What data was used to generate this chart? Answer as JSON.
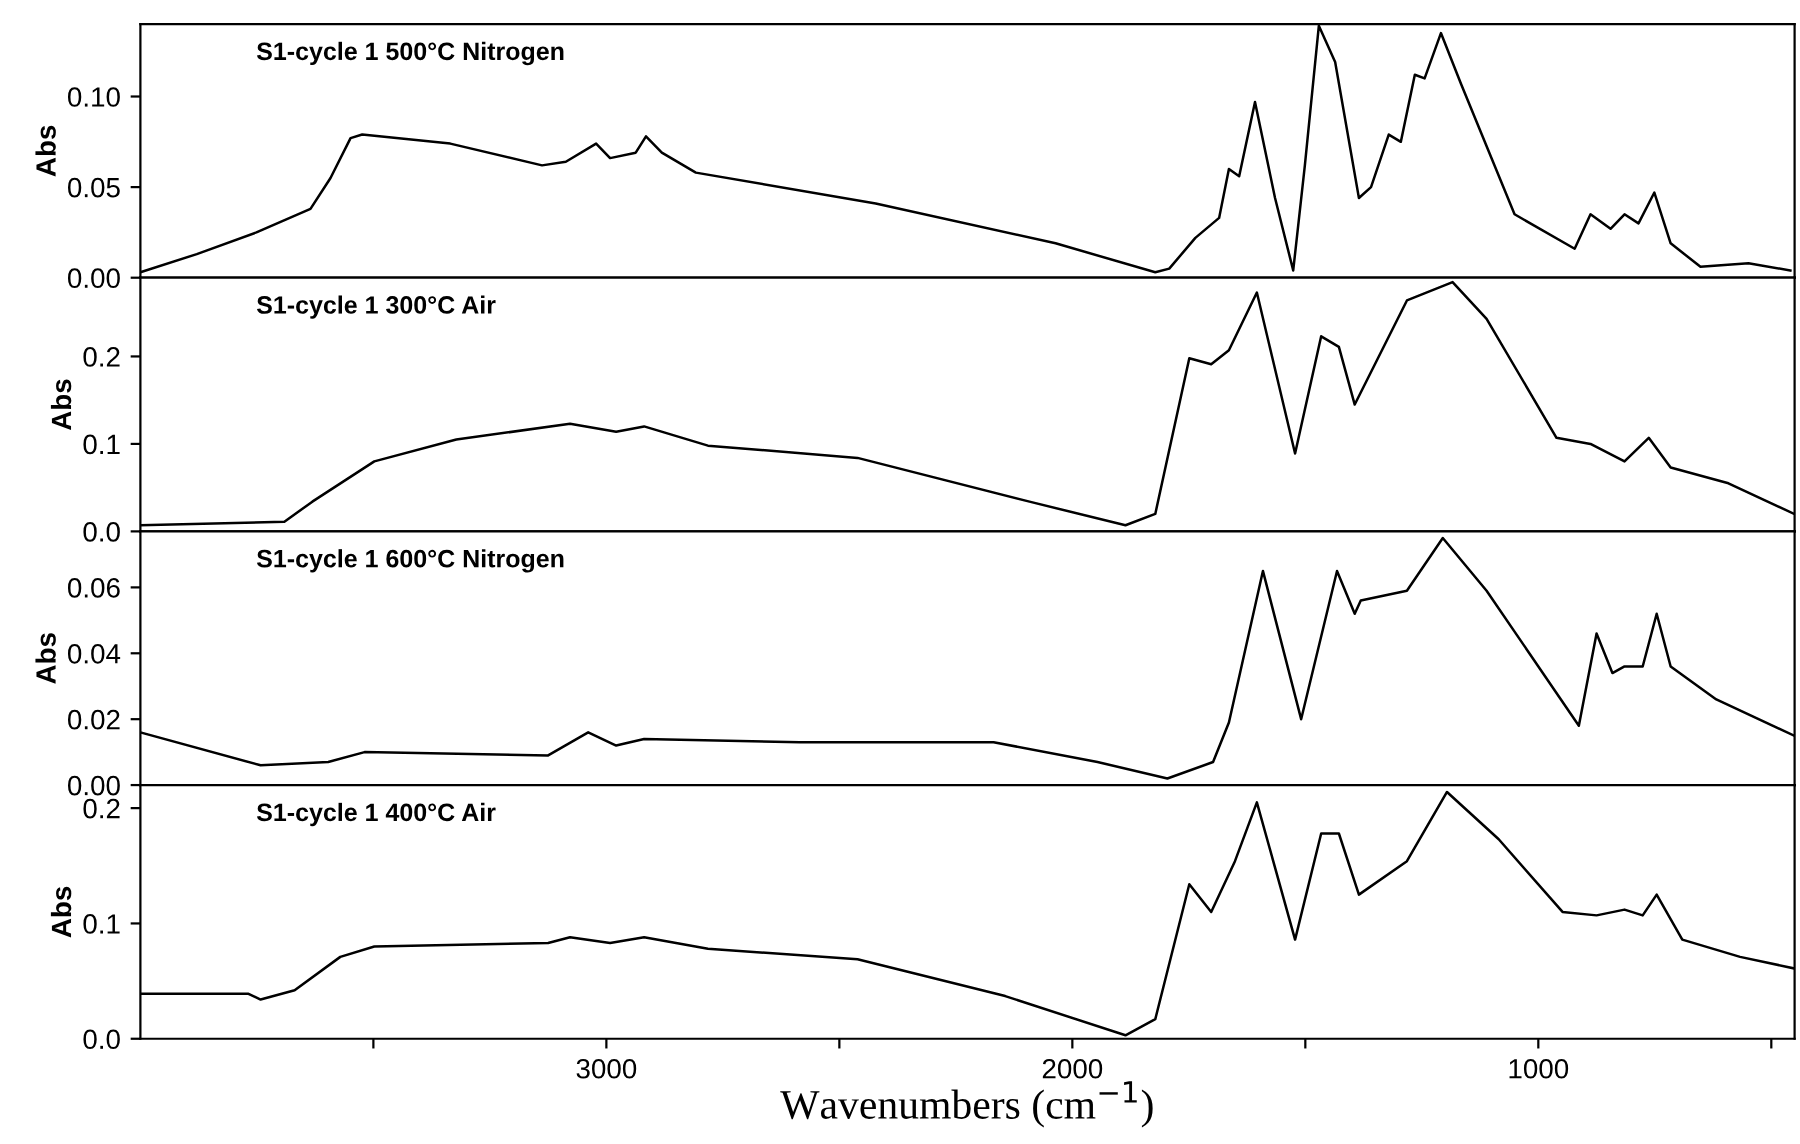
{
  "chart_data": [
    {
      "type": "line",
      "title": "S1-cycle 1 500°C Nitrogen",
      "ylabel": "Abs",
      "xlim": [
        4000,
        450
      ],
      "ylim": [
        0,
        0.14
      ],
      "yticks": [
        {
          "value": 0,
          "label": "0.00"
        },
        {
          "value": 0.05,
          "label": "0.05"
        },
        {
          "value": 0.1,
          "label": "0.10"
        }
      ],
      "xticks": [
        {
          "value": 3500,
          "label": null
        },
        {
          "value": 3000,
          "label": null
        },
        {
          "value": 2500,
          "label": null
        },
        {
          "value": 2000,
          "label": null
        },
        {
          "value": 1500,
          "label": null
        },
        {
          "value": 1000,
          "label": null
        },
        {
          "value": 500,
          "label": null
        }
      ],
      "tick_labels": "y",
      "grid": false,
      "legend": false,
      "series": [
        {
          "color": "#000000",
          "x": [
            4000,
            3879,
            3751,
            3635,
            3592,
            3549,
            3524,
            3335,
            3138,
            3087,
            3022,
            2992,
            2937,
            2915,
            2881,
            2808,
            2422,
            2036,
            1822,
            1792,
            1736,
            1685,
            1664,
            1642,
            1608,
            1565,
            1526,
            1501,
            1471,
            1436,
            1385,
            1359,
            1321,
            1295,
            1265,
            1244,
            1209,
            1166,
            1051,
            922,
            888,
            845,
            815,
            785,
            751,
            716,
            652,
            549,
            459
          ],
          "values": [
            0.003,
            0.013,
            0.025,
            0.038,
            0.055,
            0.077,
            0.079,
            0.074,
            0.062,
            0.064,
            0.074,
            0.066,
            0.069,
            0.078,
            0.069,
            0.058,
            0.041,
            0.019,
            0.003,
            0.005,
            0.022,
            0.033,
            0.06,
            0.056,
            0.097,
            0.044,
            0.004,
            0.062,
            0.139,
            0.119,
            0.044,
            0.05,
            0.079,
            0.075,
            0.112,
            0.11,
            0.135,
            0.107,
            0.035,
            0.016,
            0.035,
            0.027,
            0.035,
            0.03,
            0.047,
            0.019,
            0.006,
            0.008,
            0.004
          ]
        }
      ]
    },
    {
      "type": "line",
      "title": "S1-cycle 1 300°C Air",
      "ylabel": "Abs",
      "xlim": [
        4000,
        450
      ],
      "ylim": [
        0,
        0.29
      ],
      "yticks": [
        {
          "value": 0,
          "label": "0.0"
        },
        {
          "value": 0.1,
          "label": "0.1"
        },
        {
          "value": 0.2,
          "label": "0.2"
        }
      ],
      "xticks": [
        {
          "value": 3500,
          "label": null
        },
        {
          "value": 3000,
          "label": null
        },
        {
          "value": 2500,
          "label": null
        },
        {
          "value": 2000,
          "label": null
        },
        {
          "value": 1500,
          "label": null
        },
        {
          "value": 1000,
          "label": null
        },
        {
          "value": 500,
          "label": null
        }
      ],
      "tick_labels": "y",
      "grid": false,
      "legend": false,
      "series": [
        {
          "color": "#000000",
          "x": [
            4000,
            3691,
            3631,
            3498,
            3322,
            3078,
            2979,
            2919,
            2782,
            2461,
            2092,
            1886,
            1822,
            1749,
            1702,
            1664,
            1604,
            1522,
            1466,
            1428,
            1394,
            1282,
            1184,
            1111,
            961,
            888,
            815,
            763,
            716,
            592,
            451
          ],
          "values": [
            0.007,
            0.011,
            0.034,
            0.08,
            0.105,
            0.123,
            0.114,
            0.12,
            0.098,
            0.084,
            0.034,
            0.007,
            0.02,
            0.198,
            0.191,
            0.207,
            0.273,
            0.089,
            0.223,
            0.211,
            0.145,
            0.264,
            0.285,
            0.243,
            0.107,
            0.1,
            0.08,
            0.107,
            0.073,
            0.055,
            0.02
          ]
        }
      ]
    },
    {
      "type": "line",
      "title": "S1-cycle 1 600°C Nitrogen",
      "ylabel": "Abs",
      "xlim": [
        4000,
        450
      ],
      "ylim": [
        0,
        0.077
      ],
      "yticks": [
        {
          "value": 0,
          "label": "0.00"
        },
        {
          "value": 0.02,
          "label": "0.02"
        },
        {
          "value": 0.04,
          "label": "0.04"
        },
        {
          "value": 0.06,
          "label": "0.06"
        }
      ],
      "xticks": [
        {
          "value": 3500,
          "label": null
        },
        {
          "value": 3000,
          "label": null
        },
        {
          "value": 2500,
          "label": null
        },
        {
          "value": 2000,
          "label": null
        },
        {
          "value": 1500,
          "label": null
        },
        {
          "value": 1000,
          "label": null
        },
        {
          "value": 500,
          "label": null
        }
      ],
      "tick_labels": "y",
      "grid": false,
      "legend": false,
      "series": [
        {
          "color": "#000000",
          "x": [
            4000,
            3742,
            3597,
            3519,
            3125,
            3039,
            2979,
            2919,
            2585,
            2169,
            1946,
            1796,
            1698,
            1664,
            1591,
            1509,
            1432,
            1394,
            1381,
            1282,
            1205,
            1111,
            913,
            875,
            841,
            815,
            776,
            746,
            716,
            618,
            451
          ],
          "values": [
            0.016,
            0.006,
            0.007,
            0.01,
            0.009,
            0.016,
            0.012,
            0.014,
            0.013,
            0.013,
            0.007,
            0.002,
            0.007,
            0.019,
            0.065,
            0.02,
            0.065,
            0.052,
            0.056,
            0.059,
            0.075,
            0.059,
            0.018,
            0.046,
            0.034,
            0.036,
            0.036,
            0.052,
            0.036,
            0.026,
            0.015
          ]
        }
      ]
    },
    {
      "type": "line",
      "title": "S1-cycle 1 400°C Air",
      "ylabel": "Abs",
      "xlabel": "Wavenumbers (cm$^{−1}$)",
      "xlim": [
        4000,
        450
      ],
      "ylim": [
        0,
        0.22
      ],
      "yticks": [
        {
          "value": 0,
          "label": "0.0"
        },
        {
          "value": 0.1,
          "label": "0.1"
        },
        {
          "value": 0.2,
          "label": "0.2"
        }
      ],
      "xticks": [
        {
          "value": 3500,
          "label": null
        },
        3000,
        {
          "value": 2500,
          "label": null
        },
        2000,
        {
          "value": 1500,
          "label": null
        },
        1000,
        {
          "value": 500,
          "label": null
        }
      ],
      "grid": false,
      "legend": false,
      "series": [
        {
          "color": "#000000",
          "x": [
            4000,
            3768,
            3742,
            3669,
            3571,
            3498,
            3125,
            3078,
            2992,
            2919,
            2782,
            2461,
            2144,
            1886,
            1822,
            1749,
            1702,
            1651,
            1604,
            1522,
            1466,
            1428,
            1385,
            1282,
            1196,
            1085,
            948,
            875,
            815,
            776,
            746,
            691,
            567,
            451
          ],
          "values": [
            0.039,
            0.039,
            0.034,
            0.042,
            0.071,
            0.08,
            0.083,
            0.088,
            0.083,
            0.088,
            0.078,
            0.069,
            0.037,
            0.003,
            0.017,
            0.134,
            0.11,
            0.154,
            0.205,
            0.086,
            0.178,
            0.178,
            0.125,
            0.154,
            0.214,
            0.173,
            0.11,
            0.107,
            0.112,
            0.107,
            0.125,
            0.086,
            0.071,
            0.061
          ]
        }
      ]
    }
  ]
}
